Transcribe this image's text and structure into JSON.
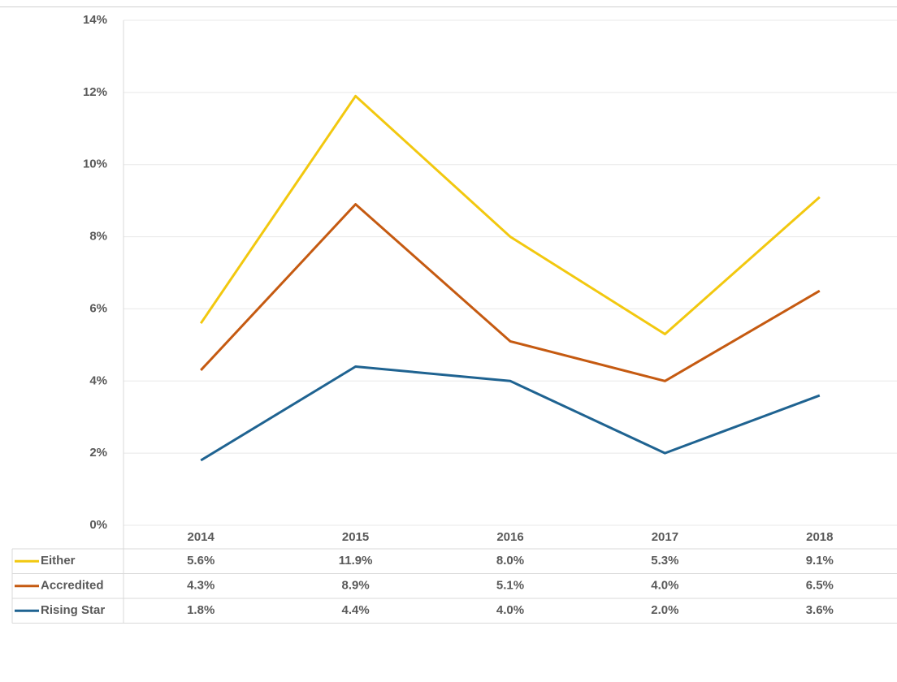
{
  "chart_data": {
    "type": "line",
    "categories": [
      "2014",
      "2015",
      "2016",
      "2017",
      "2018"
    ],
    "series": [
      {
        "name": "Either",
        "color": "#f2c80f",
        "values": [
          5.6,
          11.9,
          8.0,
          5.3,
          9.1
        ],
        "value_labels": [
          "5.6%",
          "11.9%",
          "8.0%",
          "5.3%",
          "9.1%"
        ]
      },
      {
        "name": "Accredited",
        "color": "#c55a11",
        "values": [
          4.3,
          8.9,
          5.1,
          4.0,
          6.5
        ],
        "value_labels": [
          "4.3%",
          "8.9%",
          "5.1%",
          "4.0%",
          "6.5%"
        ]
      },
      {
        "name": "Rising Star",
        "color": "#1f6391",
        "values": [
          1.8,
          4.4,
          4.0,
          2.0,
          3.6
        ],
        "value_labels": [
          "1.8%",
          "4.4%",
          "4.0%",
          "2.0%",
          "3.6%"
        ]
      }
    ],
    "ylim": [
      0,
      14
    ],
    "yticks": [
      {
        "value": 0,
        "label": "0%"
      },
      {
        "value": 2,
        "label": "2%"
      },
      {
        "value": 4,
        "label": "4%"
      },
      {
        "value": 6,
        "label": "6%"
      },
      {
        "value": 8,
        "label": "8%"
      },
      {
        "value": 10,
        "label": "10%"
      },
      {
        "value": 12,
        "label": "12%"
      },
      {
        "value": 14,
        "label": "14%"
      }
    ],
    "grid": true
  }
}
